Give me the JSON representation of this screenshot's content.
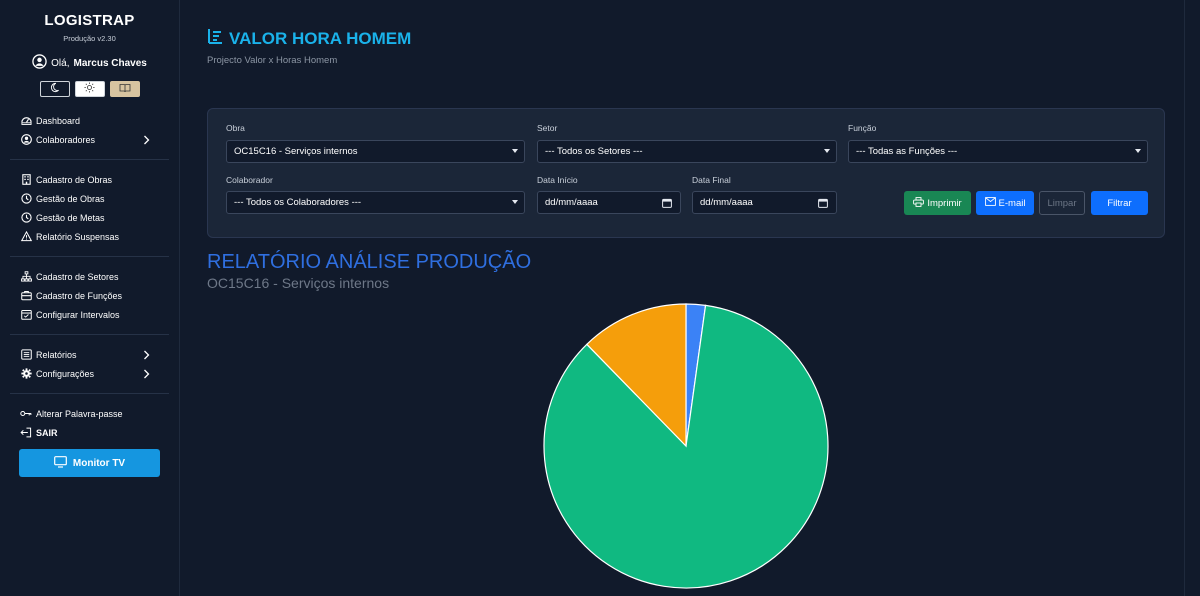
{
  "sidebar": {
    "brand": "LOGISTRAP",
    "version": "Produção v2.30",
    "greeting_prefix": "Olá,",
    "user_name": "Marcus Chaves",
    "groups": [
      [
        {
          "label": "Dashboard",
          "icon": "dashboard-icon",
          "chevron": false
        },
        {
          "label": "Colaboradores",
          "icon": "user-circle-icon",
          "chevron": true
        }
      ],
      [
        {
          "label": "Cadastro de Obras",
          "icon": "building-icon",
          "chevron": false
        },
        {
          "label": "Gestão de Obras",
          "icon": "clock-icon",
          "chevron": false
        },
        {
          "label": "Gestão de Metas",
          "icon": "clock-icon",
          "chevron": false
        },
        {
          "label": "Relatório Suspensas",
          "icon": "warning-icon",
          "chevron": false
        }
      ],
      [
        {
          "label": "Cadastro de Setores",
          "icon": "sitemap-icon",
          "chevron": false
        },
        {
          "label": "Cadastro de Funções",
          "icon": "briefcase-icon",
          "chevron": false
        },
        {
          "label": "Configurar Intervalos",
          "icon": "calendar-icon",
          "chevron": false
        }
      ],
      [
        {
          "label": "Relatórios",
          "icon": "list-icon",
          "chevron": true
        },
        {
          "label": "Configurações",
          "icon": "gear-icon",
          "chevron": true
        }
      ],
      [
        {
          "label": "Alterar Palavra-passe",
          "icon": "key-icon",
          "chevron": false
        },
        {
          "label": "SAIR",
          "icon": "logout-icon",
          "chevron": false,
          "bold": true
        }
      ]
    ],
    "monitor_button": "Monitor TV"
  },
  "header": {
    "title": "VALOR HORA HOMEM",
    "subtitle": "Projecto Valor x Horas Homem"
  },
  "filters": {
    "obra": {
      "label": "Obra",
      "value": "OC15C16 - Serviços internos"
    },
    "setor": {
      "label": "Setor",
      "value": "--- Todos os Setores ---"
    },
    "funcao": {
      "label": "Função",
      "value": "--- Todas as Funções ---"
    },
    "colaborador": {
      "label": "Colaborador",
      "value": "--- Todos os Colaboradores ---"
    },
    "data_inicio": {
      "label": "Data Início",
      "value": "dd/mm/aaaa"
    },
    "data_final": {
      "label": "Data Final",
      "value": "dd/mm/aaaa"
    },
    "buttons": {
      "print": "Imprimir",
      "email": "E-mail",
      "clear": "Limpar",
      "filter": "Filtrar"
    }
  },
  "report": {
    "title": "RELATÓRIO ANÁLISE PRODUÇÃO",
    "subtitle": "OC15C16 - Serviços internos"
  },
  "chart_data": {
    "type": "pie",
    "values": [
      2.2,
      85.5,
      12.3
    ],
    "colors": [
      "#3b82f6",
      "#10b981",
      "#f59e0b"
    ]
  },
  "colors": {
    "accent": "#1ab2ea",
    "report_title": "#2f6fe0",
    "background": "#111a2b"
  }
}
